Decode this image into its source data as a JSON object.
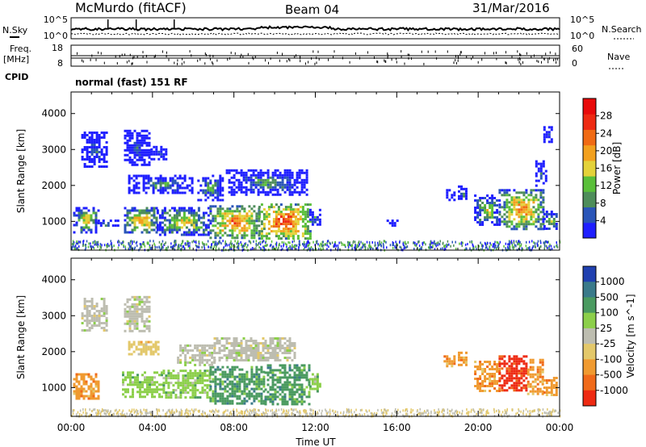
{
  "header": {
    "station": "McMurdo (fitACF)",
    "beam": "Beam 04",
    "date": "31/Mar/2016"
  },
  "top_panels": {
    "nsky_label": "N.Sky",
    "nsky_top": "10^5",
    "nsky_bottom": "10^0",
    "nsearch_label": "N.Search",
    "nsearch_top": "10^5",
    "nsearch_bottom": "10^0",
    "freq_label": "Freq.",
    "freq_unit": "[MHz]",
    "freq_top": "18",
    "freq_bottom": "8",
    "nave_label": "Nave",
    "nave_top": "60",
    "nave_bottom": "0",
    "cpid_label": "CPID",
    "cpid_text": "normal (fast) 151 RF"
  },
  "colors": {
    "power": [
      "#1f1fff",
      "#2a55b8",
      "#4e8d5a",
      "#5abf3a",
      "#e4d23a",
      "#f2a01e",
      "#f06a14",
      "#ee2a12",
      "#e80a0a"
    ],
    "velocity": [
      "#2040b0",
      "#3a7a8a",
      "#4a9a60",
      "#8ccf4a",
      "#bdbdb0",
      "#e3c86a",
      "#f09a30",
      "#f06a1a",
      "#ee2a12"
    ]
  },
  "chart_data": [
    {
      "type": "heatmap",
      "name": "power",
      "ylabel": "Slant Range [km]",
      "ylim": [
        200,
        4600
      ],
      "yticks": [
        1000,
        2000,
        3000,
        4000
      ],
      "xlim": [
        0,
        24
      ],
      "xticks": [
        "00:00",
        "04:00",
        "08:00",
        "12:00",
        "16:00",
        "20:00",
        "00:00"
      ],
      "colorbar": {
        "label": "Power [dB]",
        "range": [
          0,
          32
        ],
        "ticks": [
          "4",
          "8",
          "12",
          "16",
          "20",
          "24",
          "28"
        ]
      },
      "regions": [
        {
          "t": [
            0.1,
            1.3
          ],
          "r": [
            700,
            1400
          ],
          "level": 0.6
        },
        {
          "t": [
            1.3,
            2.3
          ],
          "r": [
            850,
            1050
          ],
          "level": 0.3
        },
        {
          "t": [
            2.6,
            4.2
          ],
          "r": [
            700,
            1400
          ],
          "level": 0.7
        },
        {
          "t": [
            4.2,
            6.8
          ],
          "r": [
            650,
            1400
          ],
          "level": 0.6
        },
        {
          "t": [
            6.8,
            9.2
          ],
          "r": [
            550,
            1450
          ],
          "level": 0.8
        },
        {
          "t": [
            9.2,
            11.7
          ],
          "r": [
            550,
            1500
          ],
          "level": 0.9
        },
        {
          "t": [
            11.7,
            12.2
          ],
          "r": [
            900,
            1350
          ],
          "level": 0.3
        },
        {
          "t": [
            2.8,
            6.0
          ],
          "r": [
            1800,
            2300
          ],
          "level": 0.35
        },
        {
          "t": [
            6.2,
            7.4
          ],
          "r": [
            1600,
            2300
          ],
          "level": 0.4
        },
        {
          "t": [
            7.6,
            11.6
          ],
          "r": [
            1750,
            2450
          ],
          "level": 0.35
        },
        {
          "t": [
            0.5,
            1.8
          ],
          "r": [
            2550,
            3500
          ],
          "level": 0.2
        },
        {
          "t": [
            2.6,
            3.8
          ],
          "r": [
            2600,
            3550
          ],
          "level": 0.2
        },
        {
          "t": [
            3.9,
            4.7
          ],
          "r": [
            2700,
            3100
          ],
          "level": 0.2
        },
        {
          "t": [
            19.8,
            21.0
          ],
          "r": [
            900,
            1750
          ],
          "level": 0.55
        },
        {
          "t": [
            21.0,
            23.2
          ],
          "r": [
            800,
            1900
          ],
          "level": 0.75
        },
        {
          "t": [
            23.2,
            23.9
          ],
          "r": [
            800,
            1300
          ],
          "level": 0.5
        },
        {
          "t": [
            22.8,
            23.3
          ],
          "r": [
            2000,
            2700
          ],
          "level": 0.2
        },
        {
          "t": [
            23.2,
            23.6
          ],
          "r": [
            3200,
            3650
          ],
          "level": 0.2
        },
        {
          "t": [
            15.5,
            16.0
          ],
          "r": [
            900,
            1050
          ],
          "level": 0.2
        },
        {
          "t": [
            18.3,
            18.8
          ],
          "r": [
            1600,
            1900
          ],
          "level": 0.3
        },
        {
          "t": [
            19.0,
            19.4
          ],
          "r": [
            1600,
            2000
          ],
          "level": 0.3
        }
      ]
    },
    {
      "type": "heatmap",
      "name": "velocity",
      "ylabel": "Slant Range [km]",
      "ylim": [
        200,
        4600
      ],
      "yticks": [
        1000,
        2000,
        3000,
        4000
      ],
      "xlim": [
        0,
        24
      ],
      "xticks": [
        "00:00",
        "04:00",
        "08:00",
        "12:00",
        "16:00",
        "20:00",
        "00:00"
      ],
      "xlabel": "Time UT",
      "colorbar": {
        "label": "Velocity [m s^-1]",
        "ticks": [
          "1000",
          "500",
          "100",
          "25",
          "-25",
          "-100",
          "-500",
          "-1000"
        ]
      },
      "regions": [
        {
          "t": [
            0.1,
            1.3
          ],
          "r": [
            700,
            1400
          ],
          "cls": 6
        },
        {
          "t": [
            2.5,
            4.5
          ],
          "r": [
            750,
            1450
          ],
          "cls": 3
        },
        {
          "t": [
            4.5,
            6.8
          ],
          "r": [
            700,
            1500
          ],
          "cls": 3
        },
        {
          "t": [
            6.8,
            9.5
          ],
          "r": [
            550,
            1600
          ],
          "cls": 2
        },
        {
          "t": [
            9.5,
            11.7
          ],
          "r": [
            550,
            1650
          ],
          "cls": 2
        },
        {
          "t": [
            11.7,
            12.2
          ],
          "r": [
            900,
            1400
          ],
          "cls": 3
        },
        {
          "t": [
            5.2,
            7.0
          ],
          "r": [
            1650,
            2200
          ],
          "cls": 4
        },
        {
          "t": [
            7.0,
            11.0
          ],
          "r": [
            1750,
            2400
          ],
          "cls": 4
        },
        {
          "t": [
            2.8,
            4.3
          ],
          "r": [
            1900,
            2300
          ],
          "cls": 5
        },
        {
          "t": [
            0.5,
            1.8
          ],
          "r": [
            2600,
            3500
          ],
          "cls": 4
        },
        {
          "t": [
            2.6,
            3.8
          ],
          "r": [
            2600,
            3550
          ],
          "cls": 4
        },
        {
          "t": [
            19.8,
            21.0
          ],
          "r": [
            900,
            1750
          ],
          "cls": 6
        },
        {
          "t": [
            21.0,
            22.4
          ],
          "r": [
            900,
            1900
          ],
          "cls": 8
        },
        {
          "t": [
            22.4,
            23.2
          ],
          "r": [
            850,
            1800
          ],
          "cls": 6
        },
        {
          "t": [
            23.2,
            23.9
          ],
          "r": [
            800,
            1300
          ],
          "cls": 6
        },
        {
          "t": [
            18.3,
            18.8
          ],
          "r": [
            1600,
            1900
          ],
          "cls": 6
        },
        {
          "t": [
            19.0,
            19.4
          ],
          "r": [
            1600,
            2000
          ],
          "cls": 6
        }
      ]
    }
  ]
}
